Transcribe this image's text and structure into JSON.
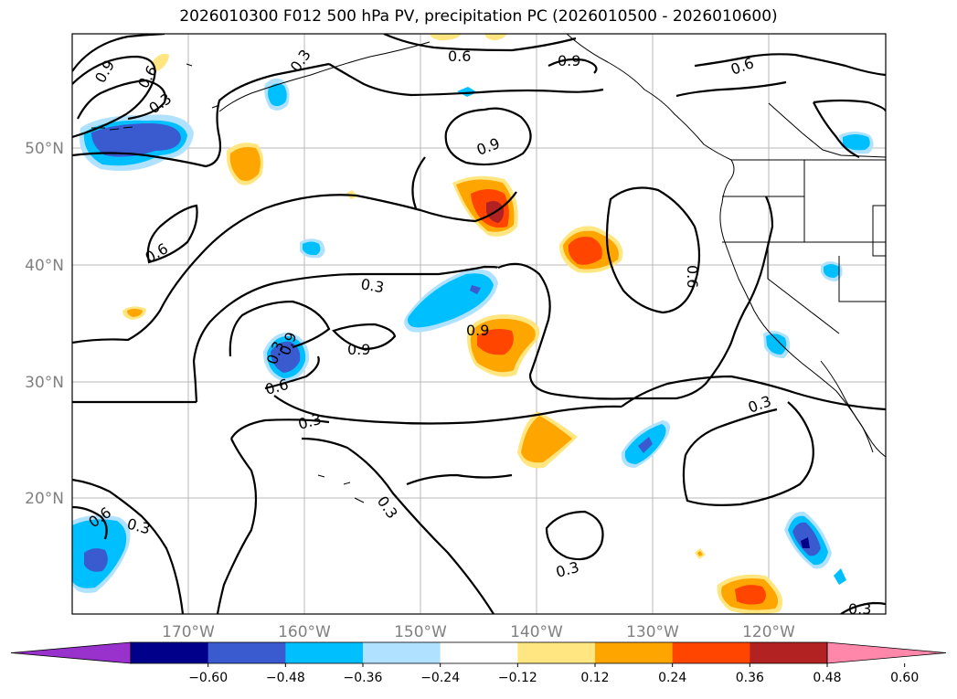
{
  "title": "2026010300 F012 500 hPa PV, precipitation PC (2026010500 - 2026010600)",
  "lat_labels": [
    "50°N",
    "40°N",
    "30°N",
    "20°N"
  ],
  "lon_labels": [
    "170°W",
    "160°W",
    "150°W",
    "140°W",
    "130°W",
    "120°W"
  ],
  "contour_labels": [
    "0.9",
    "0.6",
    "0.3",
    "0.3",
    "0.6",
    "0.9",
    "0.6",
    "0.9",
    "0.6",
    "0.6",
    "0.3",
    "0.9",
    "0.9",
    "0.3",
    "0.9",
    "0.6",
    "0.3",
    "0.3",
    "0.3",
    "0.6",
    "0.3",
    "0.3",
    "0.3",
    "0.3"
  ],
  "colorbar": {
    "ticks": [
      "−0.60",
      "−0.48",
      "−0.36",
      "−0.24",
      "−0.12",
      "0.12",
      "0.24",
      "0.36",
      "0.48",
      "0.60"
    ],
    "colors": [
      "#9932cc",
      "#00008b",
      "#3a5bd0",
      "#00bfff",
      "#b0e2ff",
      "#ffffff",
      "#ffe680",
      "#ffa500",
      "#ff4500",
      "#b22222",
      "#ff88aa"
    ]
  }
}
